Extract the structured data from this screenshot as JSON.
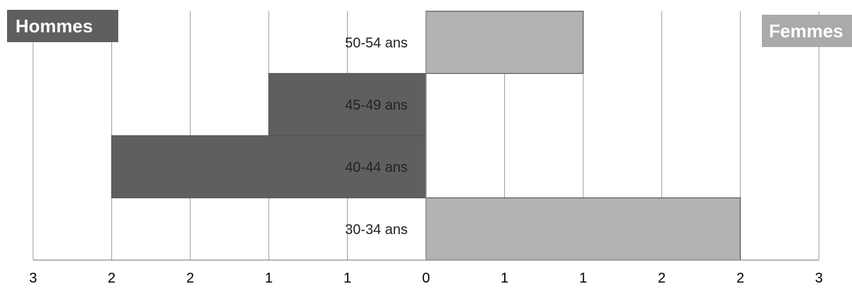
{
  "chart_data": {
    "type": "bar",
    "orientation": "horizontal",
    "subtype": "population-pyramid",
    "categories": [
      "30-34 ans",
      "40-44 ans",
      "45-49 ans",
      "50-54 ans"
    ],
    "series": [
      {
        "name": "Hommes",
        "values": [
          0,
          2,
          1,
          0
        ],
        "color": "#5f5f5f",
        "side": "left"
      },
      {
        "name": "Femmes",
        "values": [
          2,
          0,
          0,
          1
        ],
        "color": "#b3b3b3",
        "side": "right"
      }
    ],
    "x_tick_labels": [
      "3",
      "2",
      "2",
      "1",
      "1",
      "0",
      "1",
      "1",
      "2",
      "2",
      "3"
    ],
    "xlim": [
      -2.5,
      2.5
    ],
    "grid": true,
    "legend": [
      "Hommes",
      "Femmes"
    ]
  },
  "legend": {
    "men_label": "Hommes",
    "women_label": "Femmes",
    "men_color": "#5f5f5f",
    "women_color": "#aaaaaa"
  }
}
